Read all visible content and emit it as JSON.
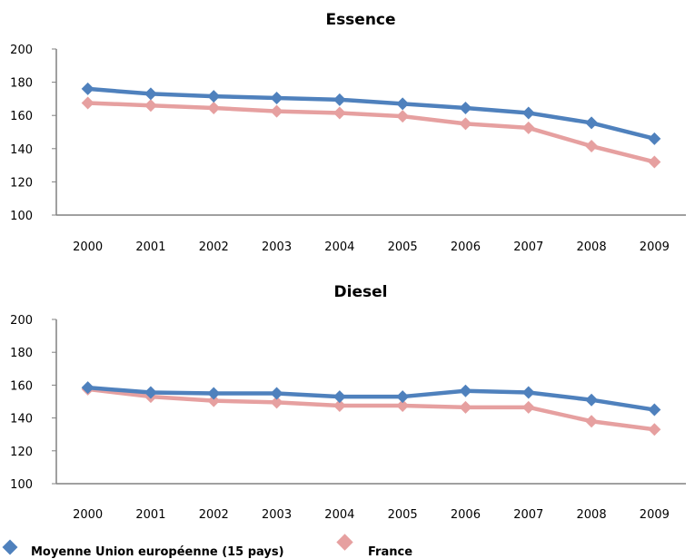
{
  "chart_data": [
    {
      "type": "line",
      "title": "Essence",
      "categories": [
        "2000",
        "2001",
        "2002",
        "2003",
        "2004",
        "2005",
        "2006",
        "2007",
        "2008",
        "2009"
      ],
      "ylim": [
        100,
        200
      ],
      "yticks": [
        100,
        120,
        140,
        160,
        180,
        200
      ],
      "grid": false,
      "series": [
        {
          "name": "Moyenne Union européenne (15 pays)",
          "color": "#4f81bd",
          "values": [
            176,
            173,
            171.5,
            170.5,
            169.5,
            167,
            164.5,
            161.5,
            155.5,
            146
          ]
        },
        {
          "name": "France",
          "color": "#e6a0a0",
          "values": [
            167.5,
            166,
            164.5,
            162.5,
            161.5,
            159.5,
            155,
            152.5,
            141.5,
            132
          ]
        }
      ]
    },
    {
      "type": "line",
      "title": "Diesel",
      "categories": [
        "2000",
        "2001",
        "2002",
        "2003",
        "2004",
        "2005",
        "2006",
        "2007",
        "2008",
        "2009"
      ],
      "ylim": [
        100,
        200
      ],
      "yticks": [
        100,
        120,
        140,
        160,
        180,
        200
      ],
      "grid": false,
      "series": [
        {
          "name": "Moyenne Union européenne (15 pays)",
          "color": "#4f81bd",
          "values": [
            158.5,
            155.5,
            155,
            155,
            153,
            153,
            156.5,
            155.5,
            151,
            145
          ]
        },
        {
          "name": "France",
          "color": "#e6a0a0",
          "values": [
            157.5,
            153,
            150.5,
            149.5,
            147.5,
            147.5,
            146.5,
            146.5,
            138,
            133
          ]
        }
      ]
    }
  ],
  "legend": {
    "placement": "bottom-left",
    "items": [
      {
        "label": "Moyenne Union européenne (15 pays)",
        "color": "#4f81bd"
      },
      {
        "label": "France",
        "color": "#e6a0a0"
      }
    ]
  }
}
